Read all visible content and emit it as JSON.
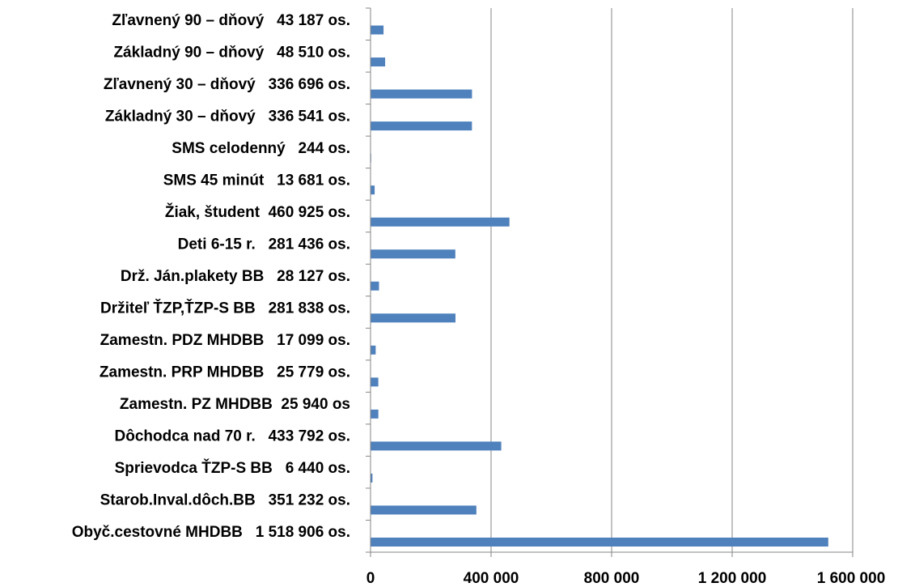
{
  "chart_data": {
    "type": "bar",
    "orientation": "horizontal",
    "categories": [
      "Obyč.cestovné MHDBB   1 518 906 os.",
      "Starob.Inval.dôch.BB   351 232 os.",
      "Sprievodca ŤZP-S BB   6 440 os.",
      "Dôchodca nad 70 r.   433 792 os.",
      "Zamestn. PZ MHDBB  25 940 os",
      "Zamestn. PRP MHDBB   25 779 os.",
      "Zamestn. PDZ MHDBB   17 099 os.",
      "Držiteľ ŤZP,ŤZP-S BB   281 838 os.",
      "Drž. Ján.plakety BB   28 127 os.",
      "Deti 6-15 r.   281 436 os.",
      "Žiak, študent  460 925 os.",
      "SMS 45 minút   13 681 os.",
      "SMS celodenný   244 os.",
      "Základný 30 – dňový   336 541 os.",
      "Zľavnený 30 – dňový   336 696 os.",
      "Základný 90 – dňový   48 510 os.",
      "Zľavnený 90 – dňový   43 187 os."
    ],
    "values": [
      1518906,
      351232,
      6440,
      433792,
      25940,
      25779,
      17099,
      281838,
      28127,
      281436,
      460925,
      13681,
      244,
      336541,
      336696,
      48510,
      43187
    ],
    "xlim": [
      0,
      1600000
    ],
    "xticks": [
      0,
      400000,
      800000,
      1200000,
      1600000
    ],
    "xtick_labels": [
      "0",
      "400 000",
      "800 000",
      "1 200 000",
      "1 600 000"
    ],
    "grid": "vertical",
    "legend": "none",
    "bar_color": "#4f81bd",
    "grid_color": "#868686"
  }
}
